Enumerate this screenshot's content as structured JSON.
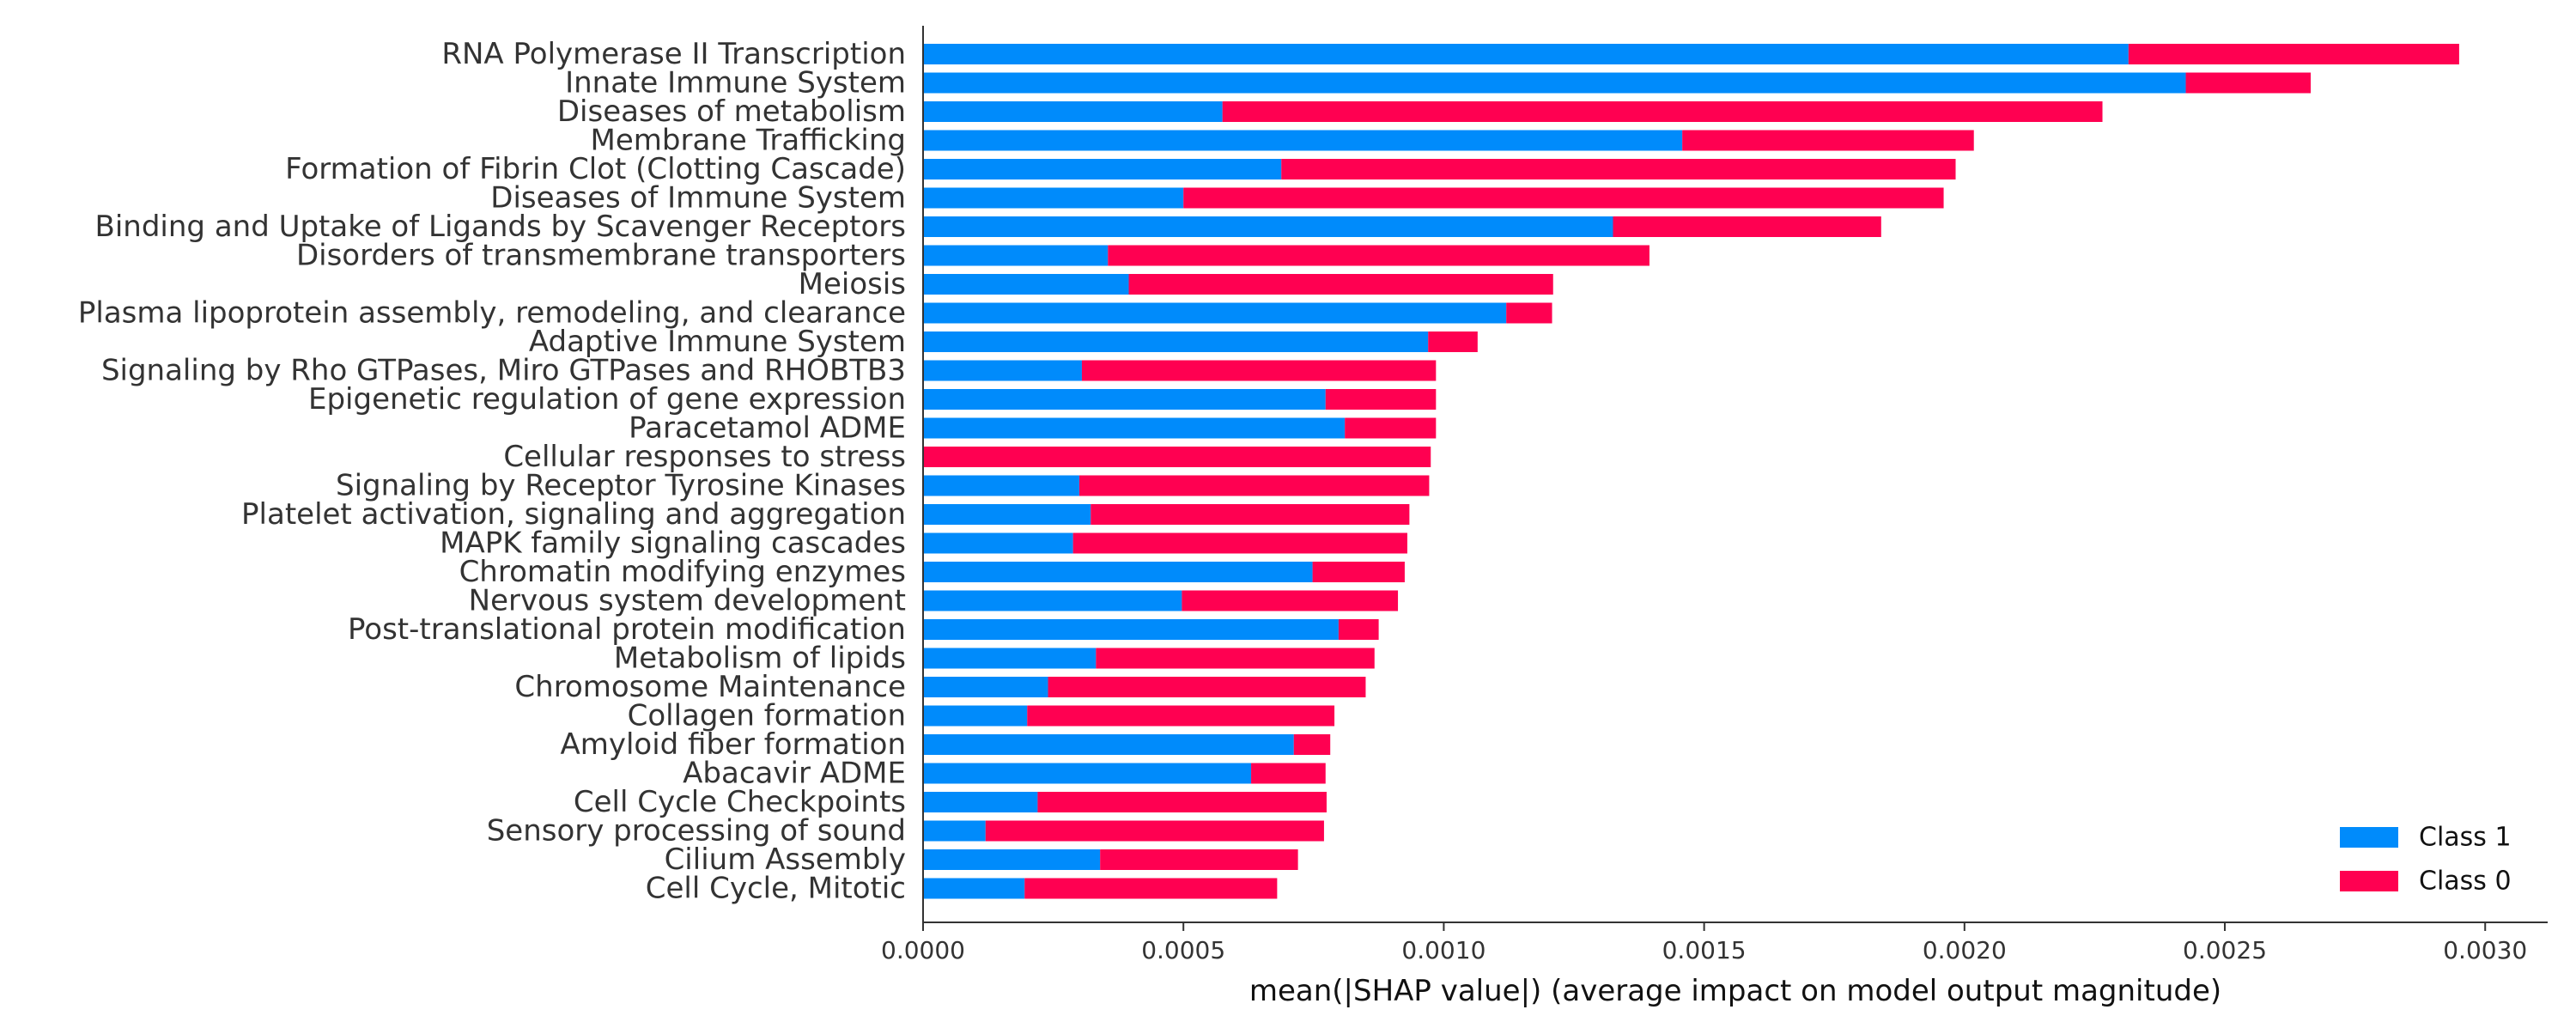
{
  "chart_data": {
    "type": "bar",
    "stacked": true,
    "orientation": "horizontal",
    "xlabel": "mean(|SHAP value|) (average impact on model output magnitude)",
    "ylabel": "",
    "xlim": [
      0,
      0.00312
    ],
    "xticks": [
      0.0,
      0.0005,
      0.001,
      0.0015,
      0.002,
      0.0025,
      0.003
    ],
    "xtick_labels": [
      "0.0000",
      "0.0005",
      "0.0010",
      "0.0015",
      "0.0020",
      "0.0025",
      "0.0030"
    ],
    "legend_position": "bottom-right",
    "categories": [
      "RNA Polymerase II Transcription",
      "Innate Immune System",
      "Diseases of metabolism",
      "Membrane Trafficking",
      "Formation of Fibrin Clot (Clotting Cascade)",
      "Diseases of Immune System",
      "Binding and Uptake of Ligands by Scavenger Receptors",
      "Disorders of transmembrane transporters",
      "Meiosis",
      "Plasma lipoprotein assembly, remodeling, and clearance",
      "Adaptive Immune System",
      "Signaling by Rho GTPases, Miro GTPases and RHOBTB3",
      "Epigenetic regulation of gene expression",
      "Paracetamol ADME",
      "Cellular responses to stress",
      "Signaling by Receptor Tyrosine Kinases",
      "Platelet activation, signaling and aggregation",
      "MAPK family signaling cascades",
      "Chromatin modifying enzymes",
      "Nervous system development",
      "Post-translational protein modification",
      "Metabolism of lipids",
      "Chromosome Maintenance",
      "Collagen formation",
      "Amyloid fiber formation",
      "Abacavir ADME",
      "Cell Cycle Checkpoints",
      "Sensory processing of sound",
      "Cilium Assembly",
      "Cell Cycle, Mitotic"
    ],
    "series": [
      {
        "name": "Class 1",
        "color": "#008bfb",
        "values": [
          0.002315,
          0.002425,
          0.000575,
          0.001458,
          0.000688,
          0.0005,
          0.001325,
          0.000355,
          0.000395,
          0.00112,
          0.00097,
          0.000305,
          0.000773,
          0.00081,
          0.0,
          0.0003,
          0.000322,
          0.000288,
          0.000748,
          0.000497,
          0.000798,
          0.000332,
          0.00024,
          0.0002,
          0.000712,
          0.00063,
          0.00022,
          0.00012,
          0.00034,
          0.000195
        ]
      },
      {
        "name": "Class 0",
        "color": "#ff0051",
        "values": [
          0.000635,
          0.00024,
          0.00169,
          0.00056,
          0.001295,
          0.00146,
          0.000515,
          0.00104,
          0.000815,
          8.8e-05,
          9.5e-05,
          0.00068,
          0.000212,
          0.000175,
          0.000975,
          0.000672,
          0.000612,
          0.000642,
          0.000177,
          0.000415,
          7.7e-05,
          0.000535,
          0.00061,
          0.00059,
          7e-05,
          0.000143,
          0.000555,
          0.00065,
          0.00038,
          0.000485
        ]
      }
    ]
  }
}
